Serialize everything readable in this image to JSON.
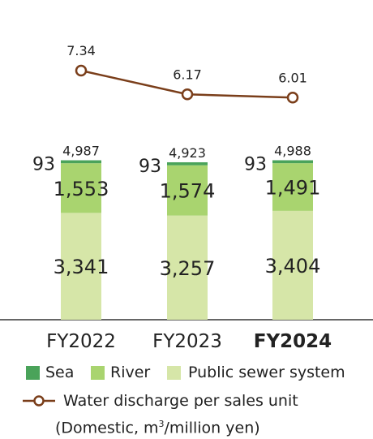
{
  "chart_data": {
    "type": "bar",
    "stacked": true,
    "categories": [
      "FY2022",
      "FY2023",
      "FY2024"
    ],
    "highlight_category": "FY2024",
    "series": [
      {
        "name": "Public sewer system",
        "values": [
          3341,
          3257,
          3404
        ],
        "labels": [
          "3,341",
          "3,257",
          "3,404"
        ],
        "color": "#d6e6a8"
      },
      {
        "name": "River",
        "values": [
          1553,
          1574,
          1491
        ],
        "labels": [
          "1,553",
          "1,574",
          "1,491"
        ],
        "color": "#a9d46f"
      },
      {
        "name": "Sea",
        "values": [
          93,
          93,
          93
        ],
        "labels": [
          "93",
          "93",
          "93"
        ],
        "color": "#4aa35a"
      }
    ],
    "totals": {
      "values": [
        4987,
        4923,
        4988
      ],
      "labels": [
        "4,987",
        "4,923",
        "4,988"
      ]
    },
    "line_series": {
      "name": "Water discharge per sales unit",
      "name_line2": "(Domestic, m",
      "unit_sup": "3",
      "unit_tail": "/million yen)",
      "values": [
        7.34,
        6.17,
        6.01
      ],
      "labels": [
        "7.34",
        "6.17",
        "6.01"
      ],
      "color": "#7a3e1a"
    },
    "legend_position": "bottom",
    "grid": false
  }
}
